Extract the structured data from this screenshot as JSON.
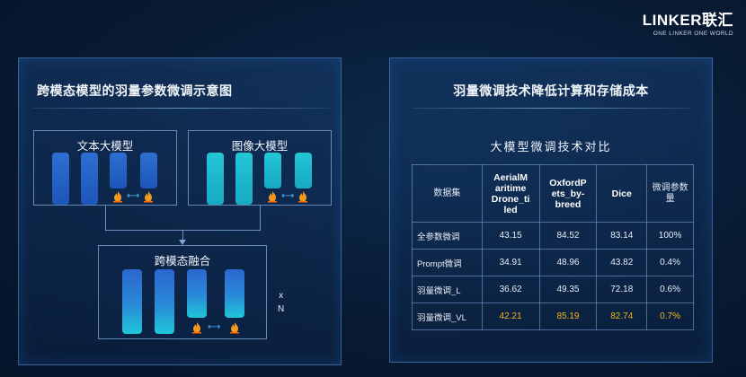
{
  "brand": {
    "name": "LINKER联汇",
    "tagline": "ONE LINKER  ONE WORLD"
  },
  "left_panel": {
    "title": "跨模态模型的羽量参数微调示意图",
    "text_model_label": "文本大模型",
    "image_model_label": "图像大模型",
    "fusion_label": "跨模态融合",
    "repeat_x": "x",
    "repeat_n": "N"
  },
  "right_panel": {
    "title": "羽量微调技术降低计算和存储成本",
    "table_title": "大模型微调技术对比",
    "columns": [
      "数据集",
      "AerialMaritimeDrone_tiled",
      "OxfordPets_by-breed",
      "Dice",
      "微调参数量"
    ],
    "rows": [
      {
        "label": "全参数微调",
        "values": [
          "43.15",
          "84.52",
          "83.14",
          "100%"
        ]
      },
      {
        "label": "Prompt微调",
        "values": [
          "34.91",
          "48.96",
          "43.82",
          "0.4%"
        ]
      },
      {
        "label": "羽量微调_L",
        "values": [
          "36.62",
          "49.35",
          "72.18",
          "0.6%"
        ]
      },
      {
        "label": "羽量微调_VL",
        "values": [
          "42.21",
          "85.19",
          "82.74",
          "0.7%"
        ]
      }
    ]
  },
  "colors": {
    "background": "#081a33",
    "highlight": "#f2b71b",
    "bar_blue": "#1c56b8",
    "bar_cyan": "#17a9c3"
  },
  "icons": [
    "flame-icon",
    "swap-arrow-icon",
    "down-arrow-icon"
  ]
}
